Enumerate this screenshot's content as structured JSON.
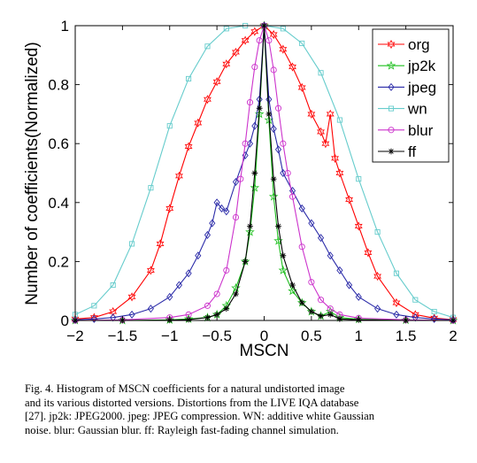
{
  "chart_data": {
    "type": "line",
    "title": "",
    "xlabel": "MSCN",
    "ylabel": "Number of coefficients(Normalized)",
    "xlim": [
      -2,
      2
    ],
    "ylim": [
      0,
      1
    ],
    "xticks": [
      -2,
      -1.5,
      -1,
      -0.5,
      0,
      0.5,
      1,
      1.5,
      2
    ],
    "xtick_labels": [
      "−2",
      "−1.5",
      "−1",
      "−0.5",
      "0",
      "0.5",
      "1",
      "1.5",
      "2"
    ],
    "yticks": [
      0,
      0.2,
      0.4,
      0.6,
      0.8,
      1
    ],
    "ytick_labels": [
      "0",
      "0.2",
      "0.4",
      "0.6",
      "0.8",
      "1"
    ],
    "grid": false,
    "legend_position": "top-right",
    "series": [
      {
        "name": "org",
        "color": "#ff0000",
        "marker": "hexagram",
        "x": [
          -2.0,
          -1.8,
          -1.6,
          -1.4,
          -1.2,
          -1.1,
          -1.0,
          -0.9,
          -0.8,
          -0.7,
          -0.6,
          -0.5,
          -0.4,
          -0.3,
          -0.2,
          -0.1,
          0.0,
          0.1,
          0.2,
          0.3,
          0.4,
          0.5,
          0.6,
          0.65,
          0.7,
          0.75,
          0.8,
          0.9,
          1.0,
          1.1,
          1.2,
          1.4,
          1.6,
          1.8,
          2.0
        ],
        "y": [
          0.005,
          0.01,
          0.03,
          0.08,
          0.17,
          0.26,
          0.38,
          0.49,
          0.59,
          0.67,
          0.75,
          0.81,
          0.87,
          0.91,
          0.95,
          0.98,
          1.0,
          0.97,
          0.92,
          0.86,
          0.79,
          0.7,
          0.64,
          0.6,
          0.7,
          0.55,
          0.5,
          0.41,
          0.32,
          0.23,
          0.15,
          0.06,
          0.02,
          0.008,
          0.003
        ]
      },
      {
        "name": "jp2k",
        "color": "#1fbf1f",
        "marker": "star",
        "x": [
          -2.0,
          -1.5,
          -1.0,
          -0.8,
          -0.6,
          -0.5,
          -0.4,
          -0.3,
          -0.2,
          -0.15,
          -0.1,
          -0.05,
          0.0,
          0.05,
          0.1,
          0.15,
          0.2,
          0.3,
          0.4,
          0.5,
          0.6,
          0.7,
          0.8,
          1.0,
          1.5,
          2.0
        ],
        "y": [
          0.0,
          0.0,
          0.002,
          0.005,
          0.01,
          0.02,
          0.05,
          0.11,
          0.2,
          0.3,
          0.45,
          0.7,
          1.0,
          0.68,
          0.42,
          0.27,
          0.17,
          0.1,
          0.06,
          0.03,
          0.015,
          0.03,
          0.01,
          0.004,
          0.001,
          0.0
        ]
      },
      {
        "name": "jpeg",
        "color": "#2a2aa8",
        "marker": "diamond",
        "x": [
          -2.0,
          -1.8,
          -1.6,
          -1.4,
          -1.2,
          -1.0,
          -0.9,
          -0.8,
          -0.7,
          -0.6,
          -0.55,
          -0.5,
          -0.45,
          -0.4,
          -0.3,
          -0.2,
          -0.15,
          -0.1,
          -0.05,
          0.0,
          0.05,
          0.1,
          0.15,
          0.2,
          0.3,
          0.4,
          0.5,
          0.6,
          0.7,
          0.8,
          0.9,
          1.0,
          1.2,
          1.4,
          1.6,
          1.8,
          2.0
        ],
        "y": [
          0.002,
          0.005,
          0.01,
          0.02,
          0.04,
          0.08,
          0.12,
          0.16,
          0.22,
          0.29,
          0.33,
          0.4,
          0.38,
          0.37,
          0.47,
          0.56,
          0.6,
          0.66,
          0.75,
          1.0,
          0.75,
          0.65,
          0.58,
          0.5,
          0.44,
          0.38,
          0.33,
          0.28,
          0.22,
          0.17,
          0.12,
          0.08,
          0.04,
          0.02,
          0.01,
          0.005,
          0.002
        ]
      },
      {
        "name": "wn",
        "color": "#66cccc",
        "marker": "square",
        "x": [
          -2.0,
          -1.8,
          -1.6,
          -1.4,
          -1.2,
          -1.0,
          -0.8,
          -0.6,
          -0.4,
          -0.2,
          0.0,
          0.2,
          0.4,
          0.6,
          0.8,
          1.0,
          1.2,
          1.4,
          1.6,
          1.8,
          2.0
        ],
        "y": [
          0.02,
          0.05,
          0.12,
          0.26,
          0.45,
          0.66,
          0.82,
          0.93,
          0.99,
          1.0,
          1.0,
          0.99,
          0.94,
          0.84,
          0.68,
          0.48,
          0.3,
          0.16,
          0.07,
          0.03,
          0.01
        ]
      },
      {
        "name": "blur",
        "color": "#cc33cc",
        "marker": "circle",
        "x": [
          -2.0,
          -1.5,
          -1.0,
          -0.8,
          -0.6,
          -0.5,
          -0.4,
          -0.3,
          -0.25,
          -0.2,
          -0.15,
          -0.1,
          -0.05,
          0.0,
          0.05,
          0.1,
          0.15,
          0.2,
          0.25,
          0.3,
          0.4,
          0.5,
          0.6,
          0.7,
          0.8,
          1.0,
          1.5,
          2.0
        ],
        "y": [
          0.0,
          0.002,
          0.01,
          0.02,
          0.05,
          0.09,
          0.17,
          0.35,
          0.48,
          0.6,
          0.74,
          0.86,
          0.95,
          1.0,
          0.95,
          0.85,
          0.72,
          0.6,
          0.5,
          0.42,
          0.25,
          0.13,
          0.07,
          0.04,
          0.02,
          0.008,
          0.002,
          0.0
        ]
      },
      {
        "name": "ff",
        "color": "#000000",
        "marker": "asterisk",
        "x": [
          -2.0,
          -1.5,
          -1.0,
          -0.8,
          -0.6,
          -0.5,
          -0.4,
          -0.3,
          -0.2,
          -0.15,
          -0.1,
          -0.05,
          0.0,
          0.05,
          0.1,
          0.15,
          0.2,
          0.3,
          0.4,
          0.5,
          0.6,
          0.7,
          0.8,
          1.0,
          1.5,
          2.0
        ],
        "y": [
          0.0,
          0.0,
          0.001,
          0.003,
          0.01,
          0.02,
          0.04,
          0.09,
          0.2,
          0.32,
          0.5,
          0.72,
          1.0,
          0.7,
          0.48,
          0.32,
          0.22,
          0.12,
          0.06,
          0.03,
          0.015,
          0.02,
          0.005,
          0.002,
          0.0,
          0.0
        ]
      }
    ]
  },
  "caption": {
    "lines": [
      "Fig. 4.    Histogram of MSCN coefficients for a natural undistorted image",
      "and its various distorted versions. Distortions from the LIVE IQA database",
      "[27]. jp2k: JPEG2000. jpeg: JPEG compression. WN: additive white Gaussian",
      "noise. blur: Gaussian blur. ff: Rayleigh fast-fading channel simulation."
    ]
  }
}
